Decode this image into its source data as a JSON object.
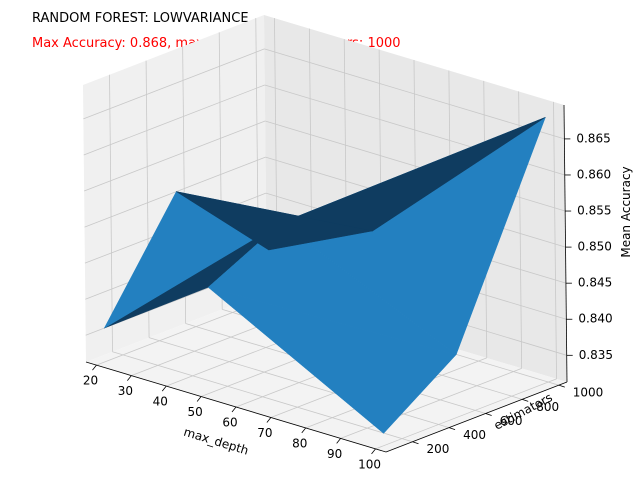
{
  "title": "RANDOM FOREST: LOWVARIANCE",
  "subtitle": "Max Accuracy: 0.868, max_depth: 100, estimators: 1000",
  "colors": {
    "subtitle": "#ff0000",
    "surface_light": "#2380c0",
    "surface_mid": "#1a5a8c",
    "surface_dark": "#0f3c60",
    "pane_left": "#f0f0f0",
    "pane_right": "#e8e8e8",
    "pane_floor": "#f3f3f3",
    "grid": "#c8c8c8"
  },
  "chart_data": {
    "type": "surface3d",
    "title": "RANDOM FOREST: LOWVARIANCE",
    "xlabel": "max_depth",
    "ylabel": "estimators",
    "zlabel": "Mean Accuracy",
    "x": [
      20,
      50,
      100
    ],
    "y": [
      100,
      500,
      1000
    ],
    "z": [
      [
        0.836,
        0.846,
        0.833
      ],
      [
        0.851,
        0.851,
        0.84
      ],
      [
        0.838,
        0.845,
        0.868
      ]
    ],
    "xticks": [
      20,
      30,
      40,
      50,
      60,
      70,
      80,
      90,
      100
    ],
    "yticks": [
      200,
      400,
      600,
      800,
      1000
    ],
    "zticks": [
      0.835,
      0.84,
      0.845,
      0.85,
      0.855,
      0.86,
      0.865
    ],
    "xlim": [
      17,
      103
    ],
    "ylim": [
      55,
      1045
    ],
    "zlim": [
      0.8313,
      0.8697
    ],
    "grid": true
  }
}
